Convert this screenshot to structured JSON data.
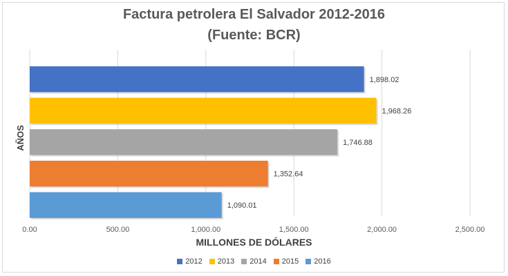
{
  "chart_data": {
    "type": "bar",
    "orientation": "horizontal",
    "title": "Factura petrolera El Salvador 2012-2016",
    "subtitle": "(Fuente: BCR)",
    "xlabel": "MILLONES DE DÓLARES",
    "ylabel": "AÑOS",
    "xlim": [
      0,
      2500
    ],
    "x_ticks": [
      0,
      500,
      1000,
      1500,
      2000,
      2500
    ],
    "x_tick_labels": [
      "0.00",
      "500.00",
      "1,000.00",
      "1,500.00",
      "2,000.00",
      "2,500.00"
    ],
    "grid": true,
    "legend_position": "bottom",
    "series": [
      {
        "name": "2012",
        "value": 1898.02,
        "label": "1,898.02",
        "color": "#4472c4"
      },
      {
        "name": "2013",
        "value": 1968.26,
        "label": "1,968.26",
        "color": "#ffc000"
      },
      {
        "name": "2014",
        "value": 1746.88,
        "label": "1,746.88",
        "color": "#a5a5a5"
      },
      {
        "name": "2015",
        "value": 1352.64,
        "label": "1,352.64",
        "color": "#ed7d31"
      },
      {
        "name": "2016",
        "value": 1090.01,
        "label": "1,090.01",
        "color": "#5b9bd5"
      }
    ]
  }
}
